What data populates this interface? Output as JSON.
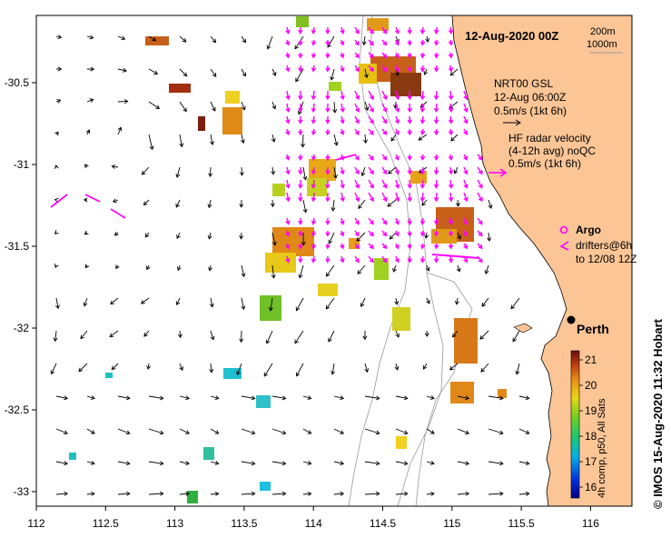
{
  "title": "12-Aug-2020 00Z",
  "depth_contours": [
    "200m",
    "1000m"
  ],
  "model_legend": {
    "line1": "NRT00 GSL",
    "line2": "12-Aug 06:00Z",
    "line3": "0.5m/s (1kt 6h)"
  },
  "radar_legend": {
    "line1": "HF radar velocity",
    "line2": "(4-12h avg) noQC",
    "line3": "0.5m/s (1kt 6h)"
  },
  "argo_label": "Argo",
  "drifters_label": {
    "line1": "drifters@6h",
    "line2": "to 12/08 12Z"
  },
  "city_label": "Perth",
  "x_ticks": [
    "112",
    "112.5",
    "113",
    "113.5",
    "114",
    "114.5",
    "115",
    "115.5",
    "116"
  ],
  "y_ticks": [
    "-30.5",
    "-31",
    "-31.5",
    "-32",
    "-32.5",
    "-33"
  ],
  "colorbar": {
    "ticks": [
      "21",
      "20",
      "19",
      "18",
      "17",
      "16"
    ],
    "label": "4h comp, p50, All Sats"
  },
  "credit": "© IMOS 15-Aug-2020 11:32 Hobart",
  "colors": {
    "land": "#fbc596",
    "radar_arrow": "#ff00ff",
    "model_arrow": "#000000"
  }
}
